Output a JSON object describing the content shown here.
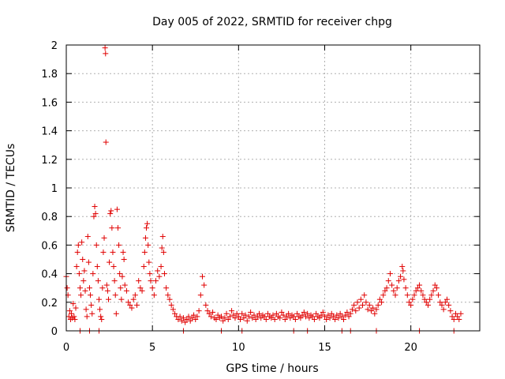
{
  "chart_data": {
    "type": "scatter",
    "title": "Day 005 of 2022, SRMTID for receiver chpg",
    "xlabel": "GPS time / hours",
    "ylabel": "SRMTID / TECUs",
    "xlim": [
      0,
      24
    ],
    "ylim": [
      0,
      2
    ],
    "xticks": [
      0,
      5,
      10,
      15,
      20
    ],
    "yticks": [
      0,
      0.2,
      0.4,
      0.6,
      0.8,
      1,
      1.2,
      1.4,
      1.6,
      1.8,
      2
    ],
    "grid": true,
    "marker": "+",
    "marker_color": "#e00000",
    "series": [
      {
        "name": "SRMTID",
        "points": [
          [
            0.0,
            0.38
          ],
          [
            0.05,
            0.3
          ],
          [
            0.1,
            0.25
          ],
          [
            0.15,
            0.1
          ],
          [
            0.2,
            0.14
          ],
          [
            0.25,
            0.08
          ],
          [
            0.3,
            0.12
          ],
          [
            0.35,
            0.09
          ],
          [
            0.4,
            0.19
          ],
          [
            0.45,
            0.1
          ],
          [
            0.5,
            0.08
          ],
          [
            0.55,
            0.16
          ],
          [
            0.6,
            0.45
          ],
          [
            0.65,
            0.55
          ],
          [
            0.7,
            0.6
          ],
          [
            0.75,
            0.4
          ],
          [
            0.8,
            0.3
          ],
          [
            0.85,
            0.25
          ],
          [
            0.9,
            0.62
          ],
          [
            0.95,
            0.5
          ],
          [
            1.0,
            0.35
          ],
          [
            1.05,
            0.42
          ],
          [
            1.1,
            0.28
          ],
          [
            1.15,
            0.15
          ],
          [
            1.2,
            0.1
          ],
          [
            1.25,
            0.66
          ],
          [
            1.3,
            0.48
          ],
          [
            1.35,
            0.3
          ],
          [
            1.4,
            0.25
          ],
          [
            1.45,
            0.18
          ],
          [
            1.5,
            0.12
          ],
          [
            1.55,
            0.4
          ],
          [
            1.6,
            0.8
          ],
          [
            1.65,
            0.87
          ],
          [
            1.7,
            0.82
          ],
          [
            1.75,
            0.6
          ],
          [
            1.8,
            0.45
          ],
          [
            1.85,
            0.35
          ],
          [
            1.9,
            0.22
          ],
          [
            1.95,
            0.15
          ],
          [
            2.0,
            0.1
          ],
          [
            2.05,
            0.08
          ],
          [
            2.1,
            0.3
          ],
          [
            2.15,
            0.55
          ],
          [
            2.2,
            0.65
          ],
          [
            2.25,
            1.98
          ],
          [
            2.28,
            1.94
          ],
          [
            2.3,
            1.32
          ],
          [
            2.35,
            0.32
          ],
          [
            2.4,
            0.28
          ],
          [
            2.45,
            0.22
          ],
          [
            2.5,
            0.48
          ],
          [
            2.55,
            0.82
          ],
          [
            2.6,
            0.84
          ],
          [
            2.65,
            0.72
          ],
          [
            2.7,
            0.55
          ],
          [
            2.75,
            0.45
          ],
          [
            2.8,
            0.35
          ],
          [
            2.85,
            0.25
          ],
          [
            2.9,
            0.12
          ],
          [
            2.95,
            0.85
          ],
          [
            3.0,
            0.72
          ],
          [
            3.05,
            0.6
          ],
          [
            3.1,
            0.4
          ],
          [
            3.15,
            0.3
          ],
          [
            3.2,
            0.22
          ],
          [
            3.25,
            0.38
          ],
          [
            3.3,
            0.55
          ],
          [
            3.35,
            0.5
          ],
          [
            3.4,
            0.32
          ],
          [
            3.5,
            0.28
          ],
          [
            3.6,
            0.2
          ],
          [
            3.7,
            0.18
          ],
          [
            3.8,
            0.16
          ],
          [
            3.9,
            0.22
          ],
          [
            4.0,
            0.25
          ],
          [
            4.1,
            0.18
          ],
          [
            4.2,
            0.35
          ],
          [
            4.3,
            0.3
          ],
          [
            4.4,
            0.28
          ],
          [
            4.5,
            0.45
          ],
          [
            4.55,
            0.55
          ],
          [
            4.6,
            0.65
          ],
          [
            4.65,
            0.72
          ],
          [
            4.7,
            0.75
          ],
          [
            4.75,
            0.6
          ],
          [
            4.8,
            0.48
          ],
          [
            4.85,
            0.4
          ],
          [
            4.9,
            0.35
          ],
          [
            5.0,
            0.3
          ],
          [
            5.1,
            0.25
          ],
          [
            5.2,
            0.35
          ],
          [
            5.3,
            0.42
          ],
          [
            5.4,
            0.38
          ],
          [
            5.5,
            0.45
          ],
          [
            5.55,
            0.58
          ],
          [
            5.6,
            0.66
          ],
          [
            5.65,
            0.55
          ],
          [
            5.7,
            0.4
          ],
          [
            5.8,
            0.3
          ],
          [
            5.9,
            0.25
          ],
          [
            6.0,
            0.22
          ],
          [
            6.1,
            0.18
          ],
          [
            6.2,
            0.15
          ],
          [
            6.3,
            0.12
          ],
          [
            6.4,
            0.1
          ],
          [
            6.5,
            0.08
          ],
          [
            6.6,
            0.1
          ],
          [
            6.7,
            0.07
          ],
          [
            6.8,
            0.09
          ],
          [
            6.9,
            0.06
          ],
          [
            7.0,
            0.08
          ],
          [
            7.1,
            0.1
          ],
          [
            7.2,
            0.07
          ],
          [
            7.3,
            0.09
          ],
          [
            7.4,
            0.11
          ],
          [
            7.5,
            0.08
          ],
          [
            7.6,
            0.1
          ],
          [
            7.7,
            0.14
          ],
          [
            7.8,
            0.25
          ],
          [
            7.9,
            0.38
          ],
          [
            8.0,
            0.32
          ],
          [
            8.1,
            0.18
          ],
          [
            8.2,
            0.14
          ],
          [
            8.3,
            0.12
          ],
          [
            8.4,
            0.1
          ],
          [
            8.5,
            0.13
          ],
          [
            8.6,
            0.09
          ],
          [
            8.7,
            0.08
          ],
          [
            8.8,
            0.11
          ],
          [
            8.9,
            0.09
          ],
          [
            9.0,
            0.1
          ],
          [
            9.1,
            0.07
          ],
          [
            9.2,
            0.09
          ],
          [
            9.3,
            0.12
          ],
          [
            9.4,
            0.08
          ],
          [
            9.5,
            0.1
          ],
          [
            9.6,
            0.14
          ],
          [
            9.7,
            0.11
          ],
          [
            9.8,
            0.09
          ],
          [
            9.9,
            0.12
          ],
          [
            10.0,
            0.1
          ],
          [
            10.1,
            0.08
          ],
          [
            10.2,
            0.12
          ],
          [
            10.3,
            0.09
          ],
          [
            10.4,
            0.11
          ],
          [
            10.5,
            0.07
          ],
          [
            10.6,
            0.1
          ],
          [
            10.7,
            0.13
          ],
          [
            10.8,
            0.09
          ],
          [
            10.9,
            0.11
          ],
          [
            11.0,
            0.08
          ],
          [
            11.1,
            0.1
          ],
          [
            11.2,
            0.12
          ],
          [
            11.3,
            0.09
          ],
          [
            11.4,
            0.11
          ],
          [
            11.5,
            0.1
          ],
          [
            11.6,
            0.08
          ],
          [
            11.7,
            0.12
          ],
          [
            11.8,
            0.1
          ],
          [
            11.9,
            0.09
          ],
          [
            12.0,
            0.11
          ],
          [
            12.1,
            0.08
          ],
          [
            12.2,
            0.12
          ],
          [
            12.3,
            0.1
          ],
          [
            12.4,
            0.09
          ],
          [
            12.5,
            0.13
          ],
          [
            12.6,
            0.11
          ],
          [
            12.7,
            0.08
          ],
          [
            12.8,
            0.1
          ],
          [
            12.9,
            0.12
          ],
          [
            13.0,
            0.09
          ],
          [
            13.1,
            0.11
          ],
          [
            13.2,
            0.1
          ],
          [
            13.3,
            0.08
          ],
          [
            13.4,
            0.12
          ],
          [
            13.5,
            0.1
          ],
          [
            13.6,
            0.09
          ],
          [
            13.7,
            0.11
          ],
          [
            13.8,
            0.13
          ],
          [
            13.9,
            0.1
          ],
          [
            14.0,
            0.12
          ],
          [
            14.1,
            0.09
          ],
          [
            14.2,
            0.11
          ],
          [
            14.3,
            0.1
          ],
          [
            14.4,
            0.08
          ],
          [
            14.5,
            0.12
          ],
          [
            14.6,
            0.1
          ],
          [
            14.7,
            0.09
          ],
          [
            14.8,
            0.11
          ],
          [
            14.9,
            0.13
          ],
          [
            15.0,
            0.1
          ],
          [
            15.1,
            0.08
          ],
          [
            15.2,
            0.11
          ],
          [
            15.3,
            0.09
          ],
          [
            15.4,
            0.12
          ],
          [
            15.5,
            0.1
          ],
          [
            15.6,
            0.08
          ],
          [
            15.7,
            0.11
          ],
          [
            15.8,
            0.09
          ],
          [
            15.9,
            0.12
          ],
          [
            16.0,
            0.1
          ],
          [
            16.1,
            0.08
          ],
          [
            16.2,
            0.11
          ],
          [
            16.3,
            0.13
          ],
          [
            16.4,
            0.1
          ],
          [
            16.5,
            0.12
          ],
          [
            16.6,
            0.15
          ],
          [
            16.7,
            0.18
          ],
          [
            16.8,
            0.14
          ],
          [
            16.9,
            0.2
          ],
          [
            17.0,
            0.16
          ],
          [
            17.1,
            0.22
          ],
          [
            17.2,
            0.18
          ],
          [
            17.3,
            0.25
          ],
          [
            17.4,
            0.2
          ],
          [
            17.5,
            0.15
          ],
          [
            17.6,
            0.18
          ],
          [
            17.7,
            0.14
          ],
          [
            17.8,
            0.16
          ],
          [
            17.9,
            0.12
          ],
          [
            18.0,
            0.15
          ],
          [
            18.1,
            0.18
          ],
          [
            18.2,
            0.22
          ],
          [
            18.3,
            0.2
          ],
          [
            18.4,
            0.25
          ],
          [
            18.5,
            0.28
          ],
          [
            18.6,
            0.3
          ],
          [
            18.7,
            0.35
          ],
          [
            18.8,
            0.4
          ],
          [
            18.9,
            0.32
          ],
          [
            19.0,
            0.28
          ],
          [
            19.1,
            0.25
          ],
          [
            19.2,
            0.3
          ],
          [
            19.3,
            0.35
          ],
          [
            19.4,
            0.38
          ],
          [
            19.5,
            0.45
          ],
          [
            19.55,
            0.42
          ],
          [
            19.6,
            0.36
          ],
          [
            19.7,
            0.3
          ],
          [
            19.8,
            0.25
          ],
          [
            19.9,
            0.2
          ],
          [
            20.0,
            0.18
          ],
          [
            20.1,
            0.22
          ],
          [
            20.2,
            0.25
          ],
          [
            20.3,
            0.28
          ],
          [
            20.4,
            0.3
          ],
          [
            20.5,
            0.32
          ],
          [
            20.6,
            0.28
          ],
          [
            20.7,
            0.25
          ],
          [
            20.8,
            0.22
          ],
          [
            20.9,
            0.2
          ],
          [
            21.0,
            0.18
          ],
          [
            21.1,
            0.22
          ],
          [
            21.2,
            0.25
          ],
          [
            21.3,
            0.28
          ],
          [
            21.4,
            0.32
          ],
          [
            21.5,
            0.3
          ],
          [
            21.6,
            0.25
          ],
          [
            21.7,
            0.2
          ],
          [
            21.8,
            0.18
          ],
          [
            21.9,
            0.15
          ],
          [
            22.0,
            0.2
          ],
          [
            22.1,
            0.22
          ],
          [
            22.2,
            0.18
          ],
          [
            22.3,
            0.14
          ],
          [
            22.4,
            0.1
          ],
          [
            22.5,
            0.08
          ],
          [
            22.6,
            0.12
          ],
          [
            22.7,
            0.1
          ],
          [
            22.8,
            0.08
          ],
          [
            22.9,
            0.12
          ],
          [
            0.8,
            0.0
          ],
          [
            1.35,
            0.0
          ],
          [
            1.9,
            0.0
          ],
          [
            6.8,
            0.0
          ],
          [
            9.0,
            0.0
          ],
          [
            10.2,
            0.0
          ],
          [
            13.2,
            0.0
          ],
          [
            14.0,
            0.0
          ],
          [
            16.0,
            0.0
          ],
          [
            16.5,
            0.0
          ],
          [
            18.0,
            0.0
          ],
          [
            22.5,
            0.0
          ],
          [
            20.5,
            0.0
          ]
        ]
      }
    ]
  }
}
